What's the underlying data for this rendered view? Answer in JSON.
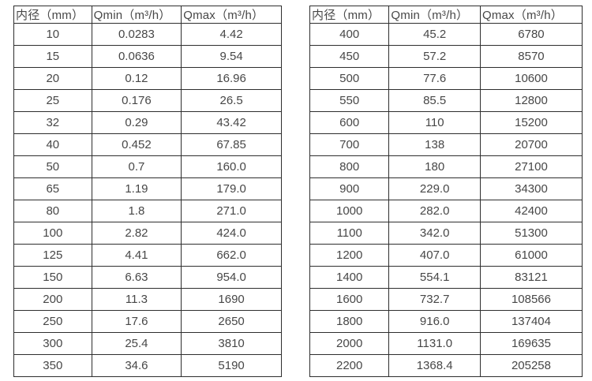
{
  "page": {
    "background_color": "#ffffff",
    "text_color": "#474747",
    "border_color": "#2e2e2e"
  },
  "tables": [
    {
      "name": "flow-table-small-diameters",
      "headers": [
        "内径（mm）",
        "Qmin（m³/h）",
        "Qmax（m³/h）"
      ],
      "rows": [
        [
          "10",
          "0.0283",
          "4.42"
        ],
        [
          "15",
          "0.0636",
          "9.54"
        ],
        [
          "20",
          "0.12",
          "16.96"
        ],
        [
          "25",
          "0.176",
          "26.5"
        ],
        [
          "32",
          "0.29",
          "43.42"
        ],
        [
          "40",
          "0.452",
          "67.85"
        ],
        [
          "50",
          "0.7",
          "160.0"
        ],
        [
          "65",
          "1.19",
          "179.0"
        ],
        [
          "80",
          "1.8",
          "271.0"
        ],
        [
          "100",
          "2.82",
          "424.0"
        ],
        [
          "125",
          "4.41",
          "662.0"
        ],
        [
          "150",
          "6.63",
          "954.0"
        ],
        [
          "200",
          "11.3",
          "1690"
        ],
        [
          "250",
          "17.6",
          "2650"
        ],
        [
          "300",
          "25.4",
          "3810"
        ],
        [
          "350",
          "34.6",
          "5190"
        ]
      ]
    },
    {
      "name": "flow-table-large-diameters",
      "headers": [
        "内径（mm）",
        "Qmin（m³/h）",
        "Qmax（m³/h）"
      ],
      "rows": [
        [
          "400",
          "45.2",
          "6780"
        ],
        [
          "450",
          "57.2",
          "8570"
        ],
        [
          "500",
          "77.6",
          "10600"
        ],
        [
          "550",
          "85.5",
          "12800"
        ],
        [
          "600",
          "110",
          "15200"
        ],
        [
          "700",
          "138",
          "20700"
        ],
        [
          "800",
          "180",
          "27100"
        ],
        [
          "900",
          "229.0",
          "34300"
        ],
        [
          "1000",
          "282.0",
          "42400"
        ],
        [
          "1100",
          "342.0",
          "51300"
        ],
        [
          "1200",
          "407.0",
          "61000"
        ],
        [
          "1400",
          "554.1",
          "83121"
        ],
        [
          "1600",
          "732.7",
          "108566"
        ],
        [
          "1800",
          "916.0",
          "137404"
        ],
        [
          "2000",
          "1131.0",
          "169635"
        ],
        [
          "2200",
          "1368.4",
          "205258"
        ]
      ]
    }
  ]
}
